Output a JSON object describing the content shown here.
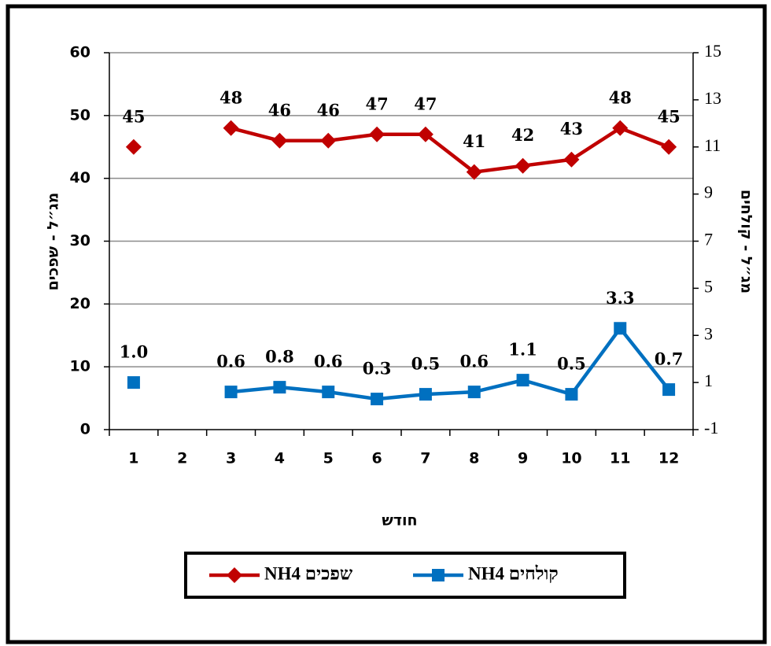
{
  "chart_data": {
    "type": "line",
    "x_label": "חודש",
    "y_label": "מג״ל - שפכים",
    "y2_label": "מג״ל - קולחים",
    "categories": [
      "1",
      "2",
      "3",
      "4",
      "5",
      "6",
      "7",
      "8",
      "9",
      "10",
      "11",
      "12"
    ],
    "series": [
      {
        "name": "NH4 שפכים",
        "color": "#c00000",
        "marker": "diamond",
        "values": [
          45,
          null,
          48,
          46,
          46,
          47,
          47,
          41,
          42,
          43,
          48,
          45
        ]
      },
      {
        "name": "NH4 קולחים",
        "color": "#0070c0",
        "marker": "square",
        "axis": "y2",
        "values": [
          1.0,
          null,
          0.6,
          0.8,
          0.6,
          0.3,
          0.5,
          0.6,
          1.1,
          0.5,
          3.3,
          0.7
        ],
        "value_labels": [
          "1.0",
          null,
          "0.6",
          "0.8",
          "0.6",
          "0.3",
          "0.5",
          "0.6",
          "1.1",
          "0.5",
          "3.3",
          "0.7"
        ]
      }
    ],
    "ylim": [
      0,
      60
    ],
    "yticks": [
      0,
      10,
      20,
      30,
      40,
      50,
      60
    ],
    "y2lim": [
      -1,
      15
    ],
    "y2ticks": [
      -1,
      1,
      3,
      5,
      7,
      9,
      11,
      13,
      15
    ],
    "grid": true,
    "legend": "bottom"
  }
}
